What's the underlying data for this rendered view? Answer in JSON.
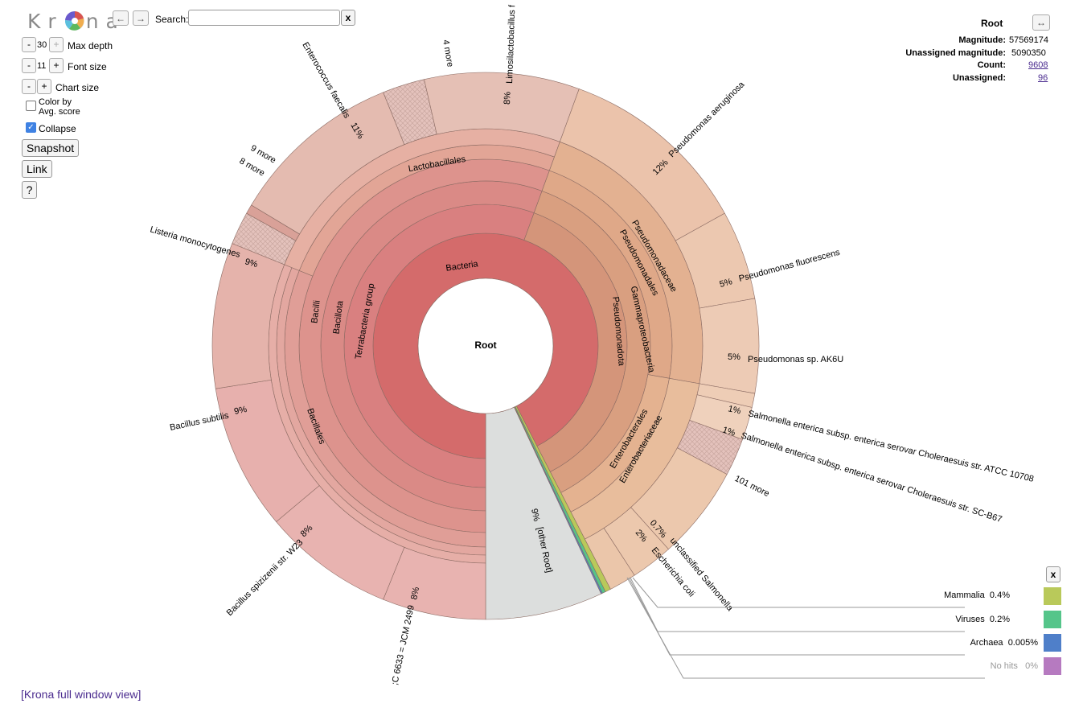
{
  "logo": {
    "letters": [
      "K",
      "r",
      "n",
      "a"
    ],
    "wheel_colors": [
      "#d9534f",
      "#f0ad4e",
      "#5cb85c",
      "#5bc0de",
      "#6a5acd"
    ]
  },
  "nav": {
    "back_label": "←",
    "forward_label": "→"
  },
  "search": {
    "label": "Search:",
    "value": "",
    "clear_label": "x"
  },
  "controls": {
    "max_depth": {
      "minus": "-",
      "value": "30",
      "plus": "+",
      "label": "Max depth"
    },
    "font_size": {
      "minus": "-",
      "value": "11",
      "plus": "+",
      "label": "Font size"
    },
    "chart_size": {
      "minus": "-",
      "plus": "+",
      "label": "Chart size"
    },
    "color_by": {
      "label_line1": "Color by",
      "label_line2": "Avg. score",
      "checked": false
    },
    "collapse": {
      "label": "Collapse",
      "checked": true,
      "check_glyph": "✓"
    },
    "snapshot_label": "Snapshot",
    "link_label": "Link",
    "help_label": "?"
  },
  "details": {
    "title": "Root",
    "expand_glyph": "↔",
    "magnitude_key": "Magnitude:",
    "magnitude": "57569174",
    "unassigned_magnitude_key": "Unassigned magnitude:",
    "unassigned_magnitude": "5090350",
    "count_key": "Count:",
    "count": "9608",
    "unassigned_key": "Unassigned:",
    "unassigned": "96"
  },
  "chart": {
    "center_label": "Root",
    "inner_labels": {
      "bacteria": "Bacteria",
      "terrabacteria": "Terrabacteria group",
      "bacillota": "Bacillota",
      "bacilli": "Bacilli",
      "bacillales": "Bacillales",
      "lactobacillales": "Lactobacillales",
      "pseudomonadota": "Pseudomonadota",
      "gammaproteobacteria": "Gammaproteobacteria",
      "pseudomonadales": "Pseudomonadales",
      "pseudomonadaceae": "Pseudomonadaceae",
      "enterobacterales": "Enterobacterales",
      "enterobacteriaceae": "Enterobacteriaceae"
    },
    "outer_labels": {
      "limosilactobacillus": "Limosilactobacillus f",
      "limosilactobacillus_pct": "8%",
      "four_more": "4 more",
      "enterococcus": "Enterococcus faecalis",
      "enterococcus_pct": "11%",
      "nine_more": "9 more",
      "eight_more": "8 more",
      "listeria": "Listeria monocytogenes",
      "listeria_pct": "9%",
      "bacillus_subtilis": "Bacillus subtilis",
      "bacillus_subtilis_pct": "9%",
      "bacillus_spizizenii": "Bacillus spizizenii str. W23",
      "bacillus_spizizenii_pct": "8%",
      "atcc": ";C 6633 = JCM 2499",
      "atcc_pct": "8%",
      "other_root": "[other Root]",
      "other_root_pct": "9%",
      "escherichia": "Escherichia coli",
      "escherichia_pct": "2%",
      "unclassified_salmonella": "unclassified Salmonella",
      "unclassified_salmonella_pct": "0.7%",
      "hundred_one_more": "101 more",
      "salmonella_scb67": "Salmonella enterica subsp. enterica serovar Choleraesuis str. SC-B67",
      "salmonella_scb67_pct": "1%",
      "salmonella_atcc": "Salmonella enterica subsp. enterica serovar Choleraesuis str. ATCC 10708",
      "salmonella_atcc_pct": "1%",
      "pseudomonas_ak6u": "Pseudomonas sp. AK6U",
      "pseudomonas_ak6u_pct": "5%",
      "pseudomonas_fluorescens": "Pseudomonas fluorescens",
      "pseudomonas_fluorescens_pct": "5%",
      "pseudomonas_aeruginosa": "Pseudomonas aeruginosa",
      "pseudomonas_aeruginosa_pct": "12%"
    },
    "colors": {
      "bacteria_inner": "#d46b6b",
      "firmicutes": "#d98787",
      "lactobac": "#e2a196",
      "bacillus_leaf": "#e8b3b0",
      "pseudo": "#d4957a",
      "pseudo_leaf": "#ebc3ab",
      "entero": "#e4b290",
      "other": "#dcdedd"
    }
  },
  "legend": {
    "close_label": "x",
    "items": [
      {
        "name": "Mammalia",
        "pct": "0.4%",
        "color": "#b9c95a"
      },
      {
        "name": "Viruses",
        "pct": "0.2%",
        "color": "#55c58a"
      },
      {
        "name": "Archaea",
        "pct": "0.005%",
        "color": "#4f7fc9"
      },
      {
        "name": "No hits",
        "pct": "0%",
        "color": "#b67ac0"
      }
    ]
  },
  "footer": {
    "full_window_link": "[Krona full window view]"
  }
}
